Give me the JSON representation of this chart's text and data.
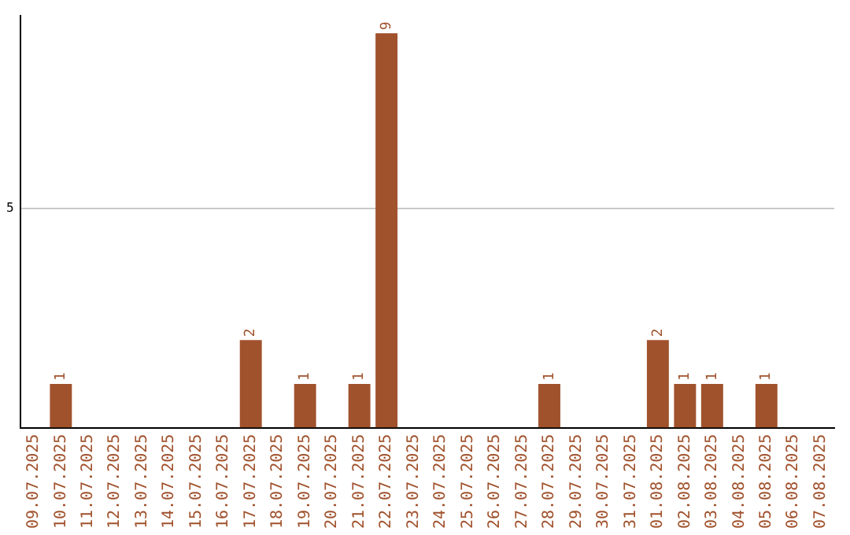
{
  "chart_data": {
    "type": "bar",
    "categories": [
      "09.07.2025",
      "10.07.2025",
      "11.07.2025",
      "12.07.2025",
      "13.07.2025",
      "14.07.2025",
      "15.07.2025",
      "16.07.2025",
      "17.07.2025",
      "18.07.2025",
      "19.07.2025",
      "20.07.2025",
      "21.07.2025",
      "22.07.2025",
      "23.07.2025",
      "24.07.2025",
      "25.07.2025",
      "26.07.2025",
      "27.07.2025",
      "28.07.2025",
      "29.07.2025",
      "30.07.2025",
      "31.07.2025",
      "01.08.2025",
      "02.08.2025",
      "03.08.2025",
      "04.08.2025",
      "05.08.2025",
      "06.08.2025",
      "07.08.2025"
    ],
    "values": [
      0,
      1,
      0,
      0,
      0,
      0,
      0,
      0,
      2,
      0,
      1,
      0,
      1,
      9,
      0,
      0,
      0,
      0,
      0,
      1,
      0,
      0,
      0,
      2,
      1,
      1,
      0,
      1,
      0,
      0
    ],
    "color": "#a0522d",
    "ylim": [
      0,
      9.4
    ],
    "yticks": [
      5
    ],
    "grid": "y",
    "value_labels": [
      null,
      "1",
      null,
      null,
      null,
      null,
      null,
      null,
      "2",
      null,
      "1",
      null,
      "1",
      "9",
      null,
      null,
      null,
      null,
      null,
      "1",
      null,
      null,
      null,
      "2",
      "1",
      "1",
      null,
      "1",
      null,
      null
    ],
    "legend": false
  }
}
